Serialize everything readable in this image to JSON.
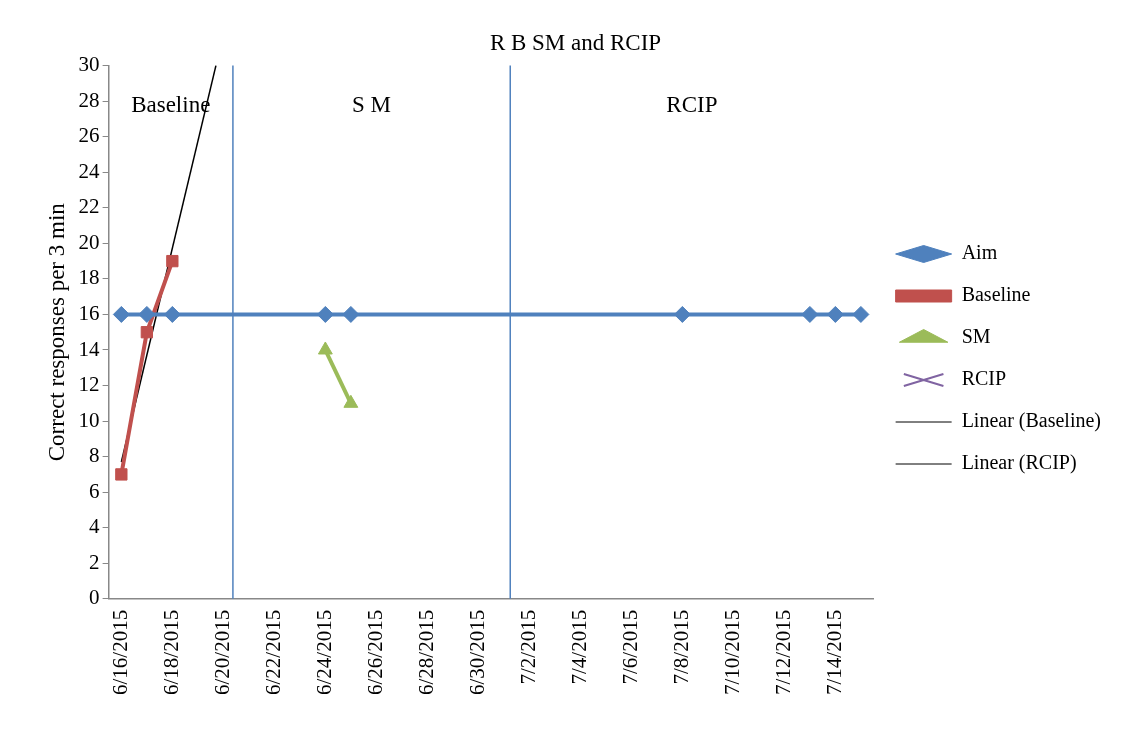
{
  "chart_data": {
    "type": "line",
    "title": "R B SM and RCIP",
    "ylabel": "Correct responses per 3 min",
    "xlim": [
      "2015-06-15T12:00",
      "2015-07-15T12:00"
    ],
    "xticks": [
      {
        "value": "2015-06-16",
        "label": "6/16/2015"
      },
      {
        "value": "2015-06-18",
        "label": "6/18/2015"
      },
      {
        "value": "2015-06-20",
        "label": "6/20/2015"
      },
      {
        "value": "2015-06-22",
        "label": "6/22/2015"
      },
      {
        "value": "2015-06-24",
        "label": "6/24/2015"
      },
      {
        "value": "2015-06-26",
        "label": "6/26/2015"
      },
      {
        "value": "2015-06-28",
        "label": "6/28/2015"
      },
      {
        "value": "2015-06-30",
        "label": "6/30/2015"
      },
      {
        "value": "2015-07-02",
        "label": "7/2/2015"
      },
      {
        "value": "2015-07-04",
        "label": "7/4/2015"
      },
      {
        "value": "2015-07-06",
        "label": "7/6/2015"
      },
      {
        "value": "2015-07-08",
        "label": "7/8/2015"
      },
      {
        "value": "2015-07-10",
        "label": "7/10/2015"
      },
      {
        "value": "2015-07-12",
        "label": "7/12/2015"
      },
      {
        "value": "2015-07-14",
        "label": "7/14/2015"
      }
    ],
    "ylim": [
      0,
      30
    ],
    "yticks": [
      0,
      2,
      4,
      6,
      8,
      10,
      12,
      14,
      16,
      18,
      20,
      22,
      24,
      26,
      28,
      30
    ],
    "grid": false,
    "legend": "right",
    "series": [
      {
        "name": "Aim",
        "color": "#4f81bd",
        "marker": "diamond",
        "x": [
          "2015-06-16",
          "2015-06-17",
          "2015-06-18",
          "2015-06-24",
          "2015-06-25",
          "2015-07-08",
          "2015-07-13",
          "2015-07-14",
          "2015-07-15"
        ],
        "values": [
          16,
          16,
          16,
          16,
          16,
          16,
          16,
          16,
          16
        ]
      },
      {
        "name": "Baseline",
        "color": "#c0504d",
        "marker": "square",
        "x": [
          "2015-06-16",
          "2015-06-17",
          "2015-06-18"
        ],
        "values": [
          7,
          15,
          19
        ]
      },
      {
        "name": "SM",
        "color": "#9bbb59",
        "marker": "triangle",
        "x": [
          "2015-06-24",
          "2015-06-25"
        ],
        "values": [
          14,
          11
        ]
      },
      {
        "name": "RCIP",
        "color": "#8064a2",
        "marker": "cross"
      },
      {
        "name": "Linear (Baseline)",
        "color": "#000000",
        "marker": "none",
        "x": [
          "2015-06-16",
          "2015-06-19T17:00"
        ],
        "values": [
          7.7,
          30
        ]
      },
      {
        "name": "Linear (RCIP)",
        "color": "#000000",
        "marker": "none"
      }
    ],
    "ref_lines": [
      {
        "axis": "x",
        "value": "2015-06-20T09:00",
        "color": "#4f81bd"
      },
      {
        "axis": "x",
        "value": "2015-07-01T06:00",
        "color": "#4f81bd"
      }
    ],
    "annotations": [
      "Baseline",
      "S M",
      "RCIP"
    ]
  }
}
